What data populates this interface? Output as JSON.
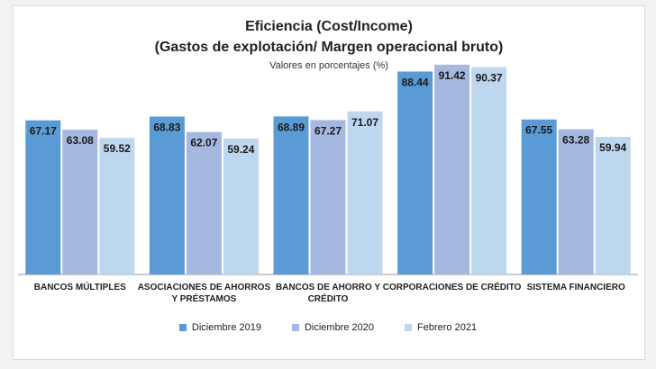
{
  "chart_data": {
    "type": "bar",
    "title": "Eficiencia (Cost/Income)",
    "subtitle": "(Gastos de explotación/ Margen operacional bruto)",
    "note": "Valores en porcentajes (%)",
    "categories": [
      [
        "BANCOS MÚLTIPLES"
      ],
      [
        "ASOCIACIONES DE AHORROS",
        "Y PRÉSTAMOS"
      ],
      [
        "BANCOS DE AHORRO Y",
        "CRÉDITO"
      ],
      [
        "CORPORACIONES DE CRÉDITO"
      ],
      [
        "SISTEMA FINANCIERO"
      ]
    ],
    "series": [
      {
        "name": "Diciembre 2019",
        "color": "#5b9bd5",
        "values": [
          67.17,
          68.83,
          68.89,
          88.44,
          67.55
        ]
      },
      {
        "name": "Diciembre 2020",
        "color": "#a4b8e0",
        "values": [
          63.08,
          62.07,
          67.27,
          91.42,
          63.28
        ]
      },
      {
        "name": "Febrero 2021",
        "color": "#bdd7ee",
        "values": [
          59.52,
          59.24,
          71.07,
          90.37,
          59.94
        ]
      }
    ],
    "ylim": [
      0,
      100
    ],
    "xlabel": "",
    "ylabel": "",
    "legend_position": "bottom",
    "grid": false
  }
}
